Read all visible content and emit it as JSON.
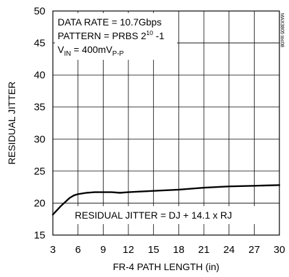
{
  "chart_data": {
    "type": "line",
    "title": "",
    "xlabel": "FR-4 PATH LENGTH (in)",
    "ylabel": "RESIDUAL JITTER",
    "xlim": [
      3,
      30
    ],
    "ylim": [
      15,
      50
    ],
    "x_ticks": [
      "3",
      "6",
      "9",
      "12",
      "15",
      "18",
      "21",
      "24",
      "27",
      "30"
    ],
    "y_ticks": [
      "15",
      "20",
      "25",
      "30",
      "35",
      "40",
      "45",
      "50"
    ],
    "grid": true,
    "part_id": "MAX3805 toc08",
    "annotations": {
      "data_rate": "DATA RATE = 10.7Gbps",
      "pattern_prefix": "PATTERN = PRBS 2",
      "pattern_exp": "10",
      "pattern_suffix": " -1",
      "vin_prefix": "V",
      "vin_sub": "IN",
      "vin_value": " = 400mV",
      "vin_unit_sub": "P-P",
      "formula": "RESIDUAL JITTER = DJ + 14.1 x RJ"
    },
    "series": [
      {
        "x": [
          3,
          4,
          5,
          5.5,
          6,
          7,
          8,
          9,
          10,
          11,
          12,
          15,
          18,
          21,
          24,
          27,
          30
        ],
        "values": [
          18.2,
          19.6,
          20.8,
          21.2,
          21.4,
          21.6,
          21.7,
          21.7,
          21.7,
          21.6,
          21.7,
          21.9,
          22.1,
          22.4,
          22.6,
          22.7,
          22.8
        ]
      }
    ]
  }
}
